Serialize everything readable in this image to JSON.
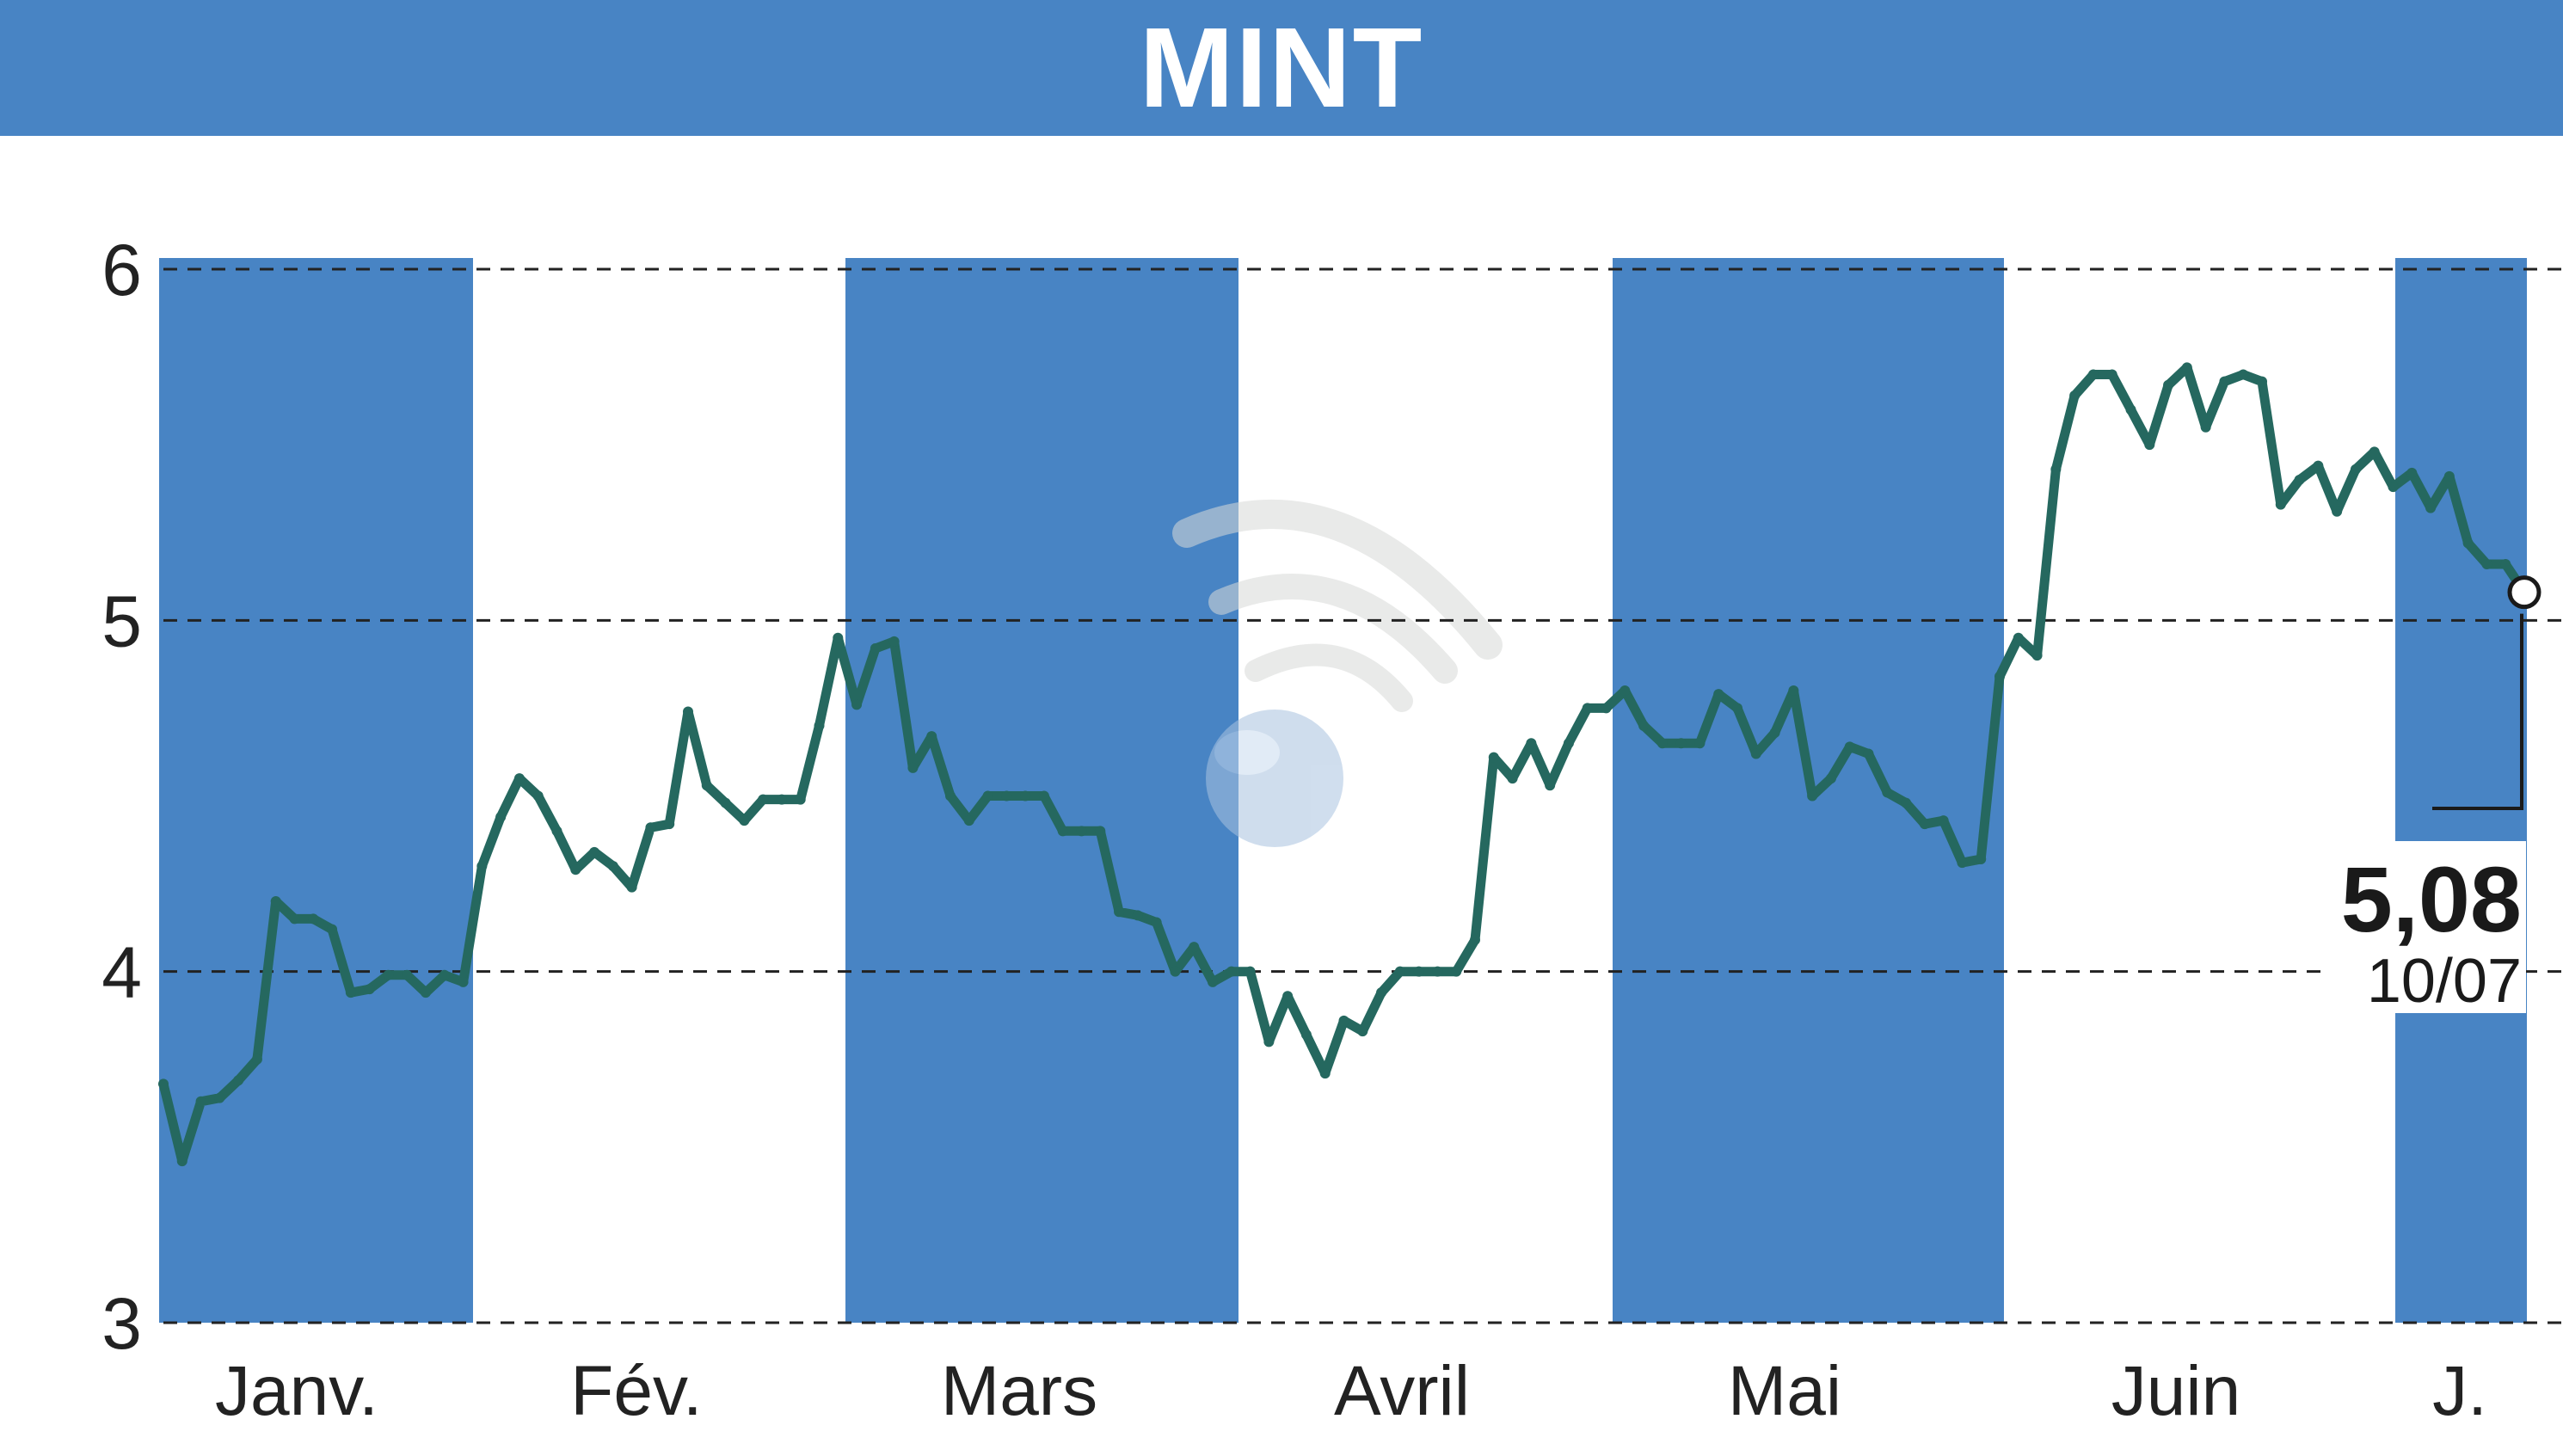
{
  "header": {
    "title": "MINT"
  },
  "colors": {
    "header_bg": "#4884c4",
    "band_fill": "#4884c4",
    "line": "#25685f",
    "grid": "#222222",
    "watermark": "#a9c3e0"
  },
  "chart_data": {
    "type": "line",
    "title": "MINT",
    "ylim": [
      3,
      6
    ],
    "yticks": [
      "6",
      "5",
      "4",
      "3"
    ],
    "ytick_values": [
      6,
      5,
      4,
      3
    ],
    "months": [
      "Janv.",
      "Fév.",
      "Mars",
      "Avril",
      "Mai",
      "Juin",
      "J."
    ],
    "shaded_months": [
      "Janv.",
      "Mars",
      "Mai",
      "J."
    ],
    "grid": "dashed horizontal",
    "last_value_label": "5,08",
    "last_date_label": "10/07",
    "series": [
      {
        "values": [
          3.68,
          3.46,
          3.63,
          3.64,
          3.69,
          3.75,
          4.2,
          4.15,
          4.15,
          4.12,
          3.94,
          3.95,
          3.99,
          3.99,
          3.94,
          3.99,
          3.97,
          4.3,
          4.44,
          4.55,
          4.5,
          4.4,
          4.29,
          4.34,
          4.3,
          4.24,
          4.41,
          4.42,
          4.74,
          4.53,
          4.48,
          4.43,
          4.49,
          4.49,
          4.49,
          4.7,
          4.95,
          4.76,
          4.92,
          4.94,
          4.58,
          4.67,
          4.5,
          4.43,
          4.5,
          4.5,
          4.5,
          4.5,
          4.4,
          4.4,
          4.4,
          4.17,
          4.16,
          4.14,
          4.0,
          4.07,
          3.97,
          4.0,
          4.0,
          3.8,
          3.93,
          3.82,
          3.71,
          3.86,
          3.83,
          3.94,
          4.0,
          4.0,
          4.0,
          4.0,
          4.09,
          4.61,
          4.55,
          4.65,
          4.53,
          4.65,
          4.75,
          4.75,
          4.8,
          4.7,
          4.65,
          4.65,
          4.65,
          4.79,
          4.75,
          4.62,
          4.68,
          4.8,
          4.5,
          4.55,
          4.64,
          4.62,
          4.51,
          4.48,
          4.42,
          4.43,
          4.31,
          4.32,
          4.84,
          4.95,
          4.9,
          5.43,
          5.64,
          5.7,
          5.7,
          5.6,
          5.5,
          5.67,
          5.72,
          5.55,
          5.68,
          5.7,
          5.68,
          5.33,
          5.4,
          5.44,
          5.31,
          5.43,
          5.48,
          5.38,
          5.42,
          5.32,
          5.41,
          5.22,
          5.16,
          5.16,
          5.08
        ]
      }
    ]
  }
}
